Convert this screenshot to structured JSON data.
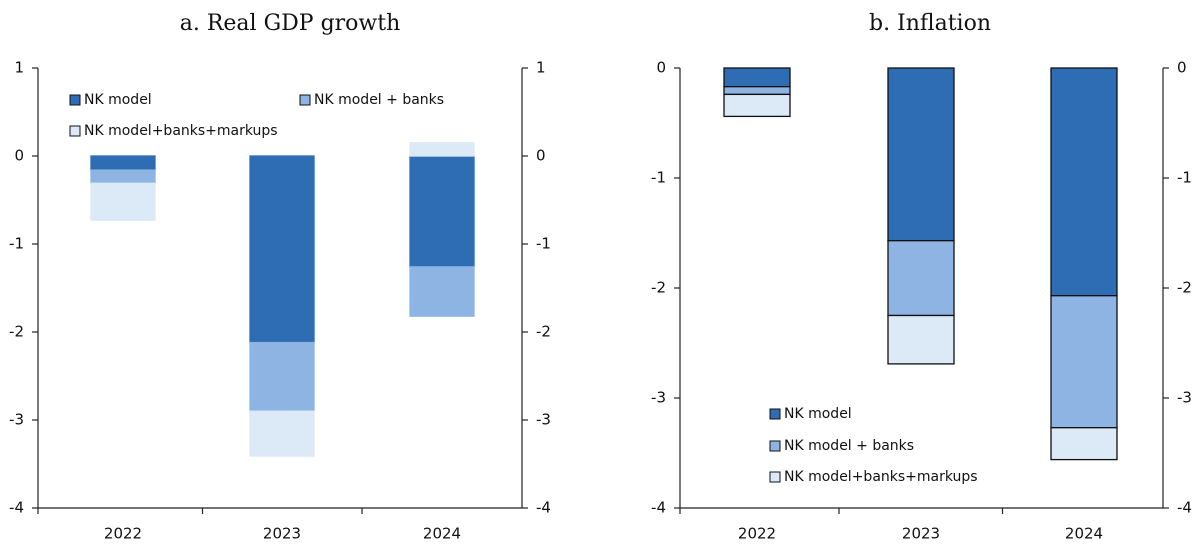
{
  "chart_data": [
    {
      "type": "stacked_bar",
      "title": "a.   Real GDP growth",
      "categories": [
        "2022",
        "2023",
        "2024"
      ],
      "series": [
        {
          "name": "NK model",
          "color": "#2e6db4",
          "values": [
            -0.16,
            -2.12,
            -1.26
          ]
        },
        {
          "name": "NK model + banks",
          "color": "#8db4e2",
          "values": [
            -0.15,
            -0.78,
            -0.56
          ]
        },
        {
          "name": "NK model+banks+markups",
          "color": "#dce9f7",
          "values": [
            -0.42,
            -0.51,
            0.15
          ]
        }
      ],
      "ylim": [
        -4,
        1
      ],
      "yticks": [
        -4,
        -3,
        -2,
        -1,
        0,
        1
      ],
      "legend": "upper left"
    },
    {
      "type": "stacked_bar",
      "title": "b.   Inflation",
      "categories": [
        "2022",
        "2023",
        "2024"
      ],
      "series": [
        {
          "name": "NK model",
          "color": "#2e6db4",
          "values": [
            -0.17,
            -1.57,
            -2.07
          ]
        },
        {
          "name": "NK model + banks",
          "color": "#8db4e2",
          "values": [
            -0.07,
            -0.68,
            -1.2
          ]
        },
        {
          "name": "NK model+banks+markups",
          "color": "#dce9f7",
          "values": [
            -0.2,
            -0.44,
            -0.29
          ]
        }
      ],
      "ylim": [
        -4,
        0
      ],
      "yticks": [
        -4,
        -3,
        -2,
        -1,
        0
      ],
      "legend": "lower left"
    }
  ]
}
